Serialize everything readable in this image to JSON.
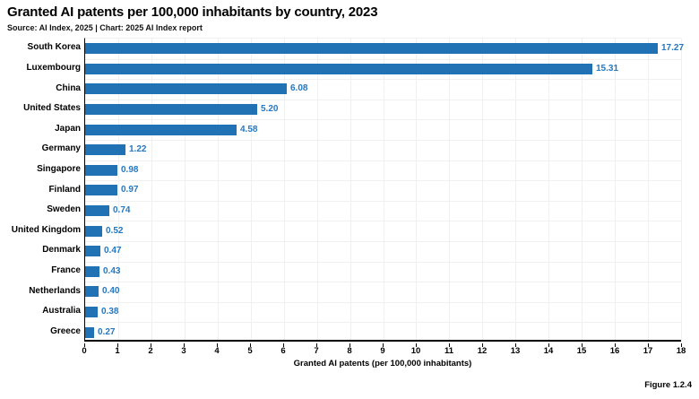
{
  "header": {
    "title": "Granted AI patents per 100,000 inhabitants by country, 2023",
    "source": "Source: AI Index, 2025 | Chart: 2025 AI Index report"
  },
  "footer": {
    "figure_label": "Figure 1.2.4"
  },
  "chart_data": {
    "type": "bar",
    "orientation": "horizontal",
    "title": "Granted AI patents per 100,000 inhabitants by country, 2023",
    "xlabel": "Granted AI patents (per 100,000 inhabitants)",
    "ylabel": "",
    "categories": [
      "South Korea",
      "Luxembourg",
      "China",
      "United States",
      "Japan",
      "Germany",
      "Singapore",
      "Finland",
      "Sweden",
      "United Kingdom",
      "Denmark",
      "France",
      "Netherlands",
      "Australia",
      "Greece"
    ],
    "values": [
      17.27,
      15.31,
      6.08,
      5.2,
      4.58,
      1.22,
      0.98,
      0.97,
      0.74,
      0.52,
      0.47,
      0.43,
      0.4,
      0.38,
      0.27
    ],
    "value_labels": [
      "17.27",
      "15.31",
      "6.08",
      "5.20",
      "4.58",
      "1.22",
      "0.98",
      "0.97",
      "0.74",
      "0.52",
      "0.47",
      "0.43",
      "0.40",
      "0.38",
      "0.27"
    ],
    "xlim": [
      0,
      18
    ],
    "x_ticks": [
      0,
      1,
      2,
      3,
      4,
      5,
      6,
      7,
      8,
      9,
      10,
      11,
      12,
      13,
      14,
      15,
      16,
      17,
      18
    ],
    "grid": true,
    "legend": "none",
    "colors": {
      "bar": "#2171b5",
      "value_label": "#2478c2",
      "grid": "#f0f0f0",
      "axis": "#000000",
      "text": "#000000",
      "background": "#ffffff"
    }
  }
}
